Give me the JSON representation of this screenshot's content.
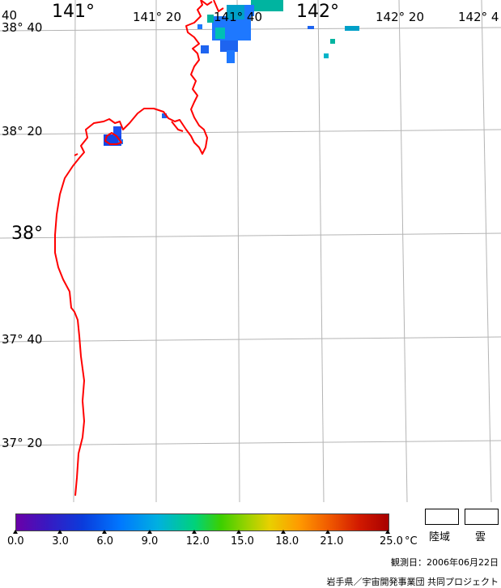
{
  "map": {
    "longitude_labels": [
      {
        "text": "40",
        "size": "sm"
      },
      {
        "text": "141°",
        "size": "lg"
      },
      {
        "text": "141° 20",
        "size": "sm"
      },
      {
        "text": "141° 40",
        "size": "sm"
      },
      {
        "text": "142°",
        "size": "lg"
      },
      {
        "text": "142° 20",
        "size": "sm"
      },
      {
        "text": "142° 4",
        "size": "sm"
      }
    ],
    "latitude_labels": [
      {
        "text": "38° 40",
        "size": "sm"
      },
      {
        "text": "38° 20",
        "size": "sm"
      },
      {
        "text": "38°",
        "size": "lg"
      },
      {
        "text": "37° 40",
        "size": "sm"
      },
      {
        "text": "37° 20",
        "size": "sm"
      }
    ],
    "coastline_color": "#ff0000",
    "grid_color": "#b4b4b4"
  },
  "colorbar": {
    "ticks": [
      "0.0",
      "3.0",
      "6.0",
      "9.0",
      "12.0",
      "15.0",
      "18.0",
      "21.0",
      "25.0"
    ],
    "unit": "°C",
    "min": 0.0,
    "max": 25.0
  },
  "legend": {
    "land_label": "陸域",
    "cloud_label": "雲"
  },
  "footer": {
    "observation_date": "観測日：2006年06月22日",
    "credit": "岩手県／宇宙開発事業団 共同プロジェクト"
  }
}
